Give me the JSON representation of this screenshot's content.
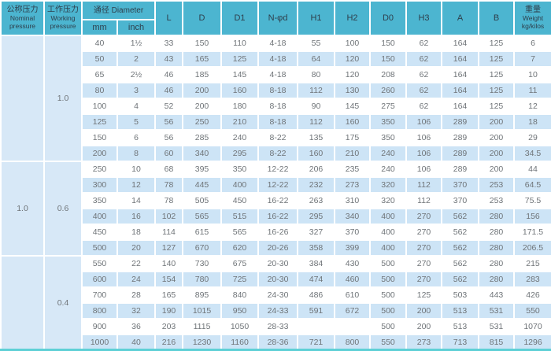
{
  "table": {
    "header": {
      "nominal_lines": [
        "公称压力",
        "Nominal",
        "pressure"
      ],
      "working_lines": [
        "工作压力",
        "Working",
        "pressure"
      ],
      "diameter_label": "通径 Diameter",
      "diameter_sub": [
        "mm",
        "inch"
      ],
      "dim_columns": [
        "L",
        "D",
        "D1",
        "N-φd",
        "H1",
        "H2",
        "D0",
        "H3",
        "A",
        "B"
      ],
      "weight_lines": [
        "重量",
        "Weight",
        "kg/kilos"
      ]
    },
    "groups": [
      {
        "nominal_pressure": "",
        "working_pressure": "1.0",
        "rows": [
          [
            "40",
            "1½",
            "33",
            "150",
            "110",
            "4-18",
            "55",
            "100",
            "150",
            "62",
            "164",
            "125",
            "6"
          ],
          [
            "50",
            "2",
            "43",
            "165",
            "125",
            "4-18",
            "64",
            "120",
            "150",
            "62",
            "164",
            "125",
            "7"
          ],
          [
            "65",
            "2½",
            "46",
            "185",
            "145",
            "4-18",
            "80",
            "120",
            "208",
            "62",
            "164",
            "125",
            "10"
          ],
          [
            "80",
            "3",
            "46",
            "200",
            "160",
            "8-18",
            "112",
            "130",
            "260",
            "62",
            "164",
            "125",
            "11"
          ],
          [
            "100",
            "4",
            "52",
            "200",
            "180",
            "8-18",
            "90",
            "145",
            "275",
            "62",
            "164",
            "125",
            "12"
          ],
          [
            "125",
            "5",
            "56",
            "250",
            "210",
            "8-18",
            "112",
            "160",
            "350",
            "106",
            "289",
            "200",
            "18"
          ],
          [
            "150",
            "6",
            "56",
            "285",
            "240",
            "8-22",
            "135",
            "175",
            "350",
            "106",
            "289",
            "200",
            "29"
          ],
          [
            "200",
            "8",
            "60",
            "340",
            "295",
            "8-22",
            "160",
            "210",
            "240",
            "106",
            "289",
            "200",
            "34.5"
          ]
        ]
      },
      {
        "nominal_pressure": "1.0",
        "working_pressure": "0.6",
        "rows": [
          [
            "250",
            "10",
            "68",
            "395",
            "350",
            "12-22",
            "206",
            "235",
            "240",
            "106",
            "289",
            "200",
            "44"
          ],
          [
            "300",
            "12",
            "78",
            "445",
            "400",
            "12-22",
            "232",
            "273",
            "320",
            "112",
            "370",
            "253",
            "64.5"
          ],
          [
            "350",
            "14",
            "78",
            "505",
            "450",
            "16-22",
            "263",
            "310",
            "320",
            "112",
            "370",
            "253",
            "75.5"
          ],
          [
            "400",
            "16",
            "102",
            "565",
            "515",
            "16-22",
            "295",
            "340",
            "400",
            "270",
            "562",
            "280",
            "156"
          ],
          [
            "450",
            "18",
            "114",
            "615",
            "565",
            "16-26",
            "327",
            "370",
            "400",
            "270",
            "562",
            "280",
            "171.5"
          ],
          [
            "500",
            "20",
            "127",
            "670",
            "620",
            "20-26",
            "358",
            "399",
            "400",
            "270",
            "562",
            "280",
            "206.5"
          ]
        ]
      },
      {
        "nominal_pressure": "",
        "working_pressure": "0.4",
        "rows": [
          [
            "550",
            "22",
            "140",
            "730",
            "675",
            "20-30",
            "384",
            "430",
            "500",
            "270",
            "562",
            "280",
            "215"
          ],
          [
            "600",
            "24",
            "154",
            "780",
            "725",
            "20-30",
            "474",
            "460",
            "500",
            "270",
            "562",
            "280",
            "283"
          ],
          [
            "700",
            "28",
            "165",
            "895",
            "840",
            "24-30",
            "486",
            "610",
            "500",
            "125",
            "503",
            "443",
            "426"
          ],
          [
            "800",
            "32",
            "190",
            "1015",
            "950",
            "24-33",
            "591",
            "672",
            "500",
            "200",
            "513",
            "531",
            "550"
          ],
          [
            "900",
            "36",
            "203",
            "1115",
            "1050",
            "28-33",
            "",
            "",
            "500",
            "200",
            "513",
            "531",
            "1070"
          ],
          [
            "1000",
            "40",
            "216",
            "1230",
            "1160",
            "28-36",
            "721",
            "800",
            "550",
            "273",
            "713",
            "815",
            "1296"
          ]
        ]
      }
    ]
  },
  "colors": {
    "header_bg": "#4cb5d0",
    "stripe_blue": "#cde4f6",
    "stripe_white": "#ffffff",
    "side_bg": "#d7e8f7",
    "header_text": "#2e3f4c",
    "body_text": "#6f7478",
    "bottom_line": "#5ed0d6"
  }
}
